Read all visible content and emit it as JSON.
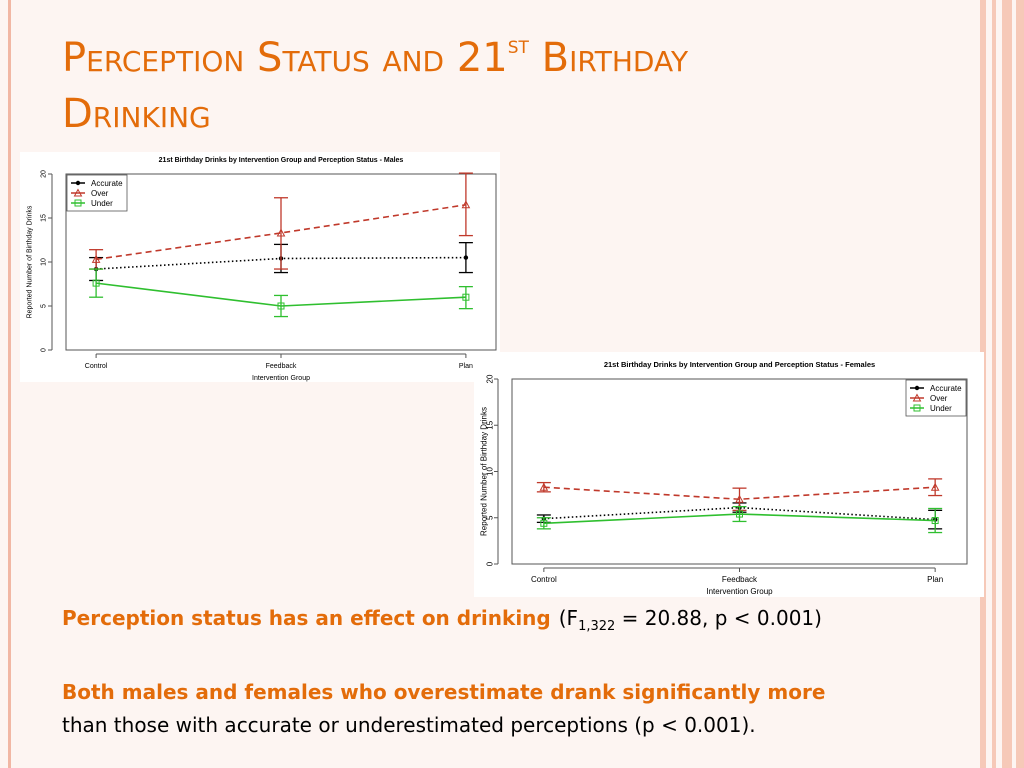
{
  "slide": {
    "title_main": "Perception Status and 21",
    "title_sup": "st",
    "title_tail": "Birthday",
    "title_line2": "Drinking",
    "text1_orange": "Perception status has an effect on drinking",
    "text1_stat_a": "(F",
    "text1_stat_sub": "1,322",
    "text1_stat_b": " = 20.88, p < 0.001)",
    "text2_orange": "Both males and females who overestimate drank significantly more",
    "text2_plain": "than those with accurate or underestimated perceptions (p < 0.001)."
  },
  "colors": {
    "accent": "#e36c0a",
    "accurate": "#000000",
    "over": "#c0392b",
    "under": "#2fbf2f"
  },
  "chart_data": [
    {
      "type": "line",
      "title": "21st Birthday Drinks by Intervention Group and Perception Status - Males",
      "xlabel": "Intervention Group",
      "ylabel": "Reported Number of Birthday Drinks",
      "categories": [
        "Control",
        "Feedback",
        "Plan"
      ],
      "ylim": [
        0,
        20
      ],
      "yticks": [
        0,
        5,
        10,
        15,
        20
      ],
      "legend_position": "top-left",
      "series": [
        {
          "name": "Accurate",
          "values": [
            9.2,
            10.4,
            10.5
          ],
          "lower": [
            7.9,
            8.8,
            8.8
          ],
          "upper": [
            10.5,
            12.0,
            12.2
          ],
          "color": "#000000",
          "dash": "dotted",
          "marker": "dot"
        },
        {
          "name": "Over",
          "values": [
            10.3,
            13.3,
            16.5
          ],
          "lower": [
            9.2,
            9.2,
            13.0
          ],
          "upper": [
            11.4,
            17.3,
            20.1
          ],
          "color": "#c0392b",
          "dash": "dashed",
          "marker": "triangle"
        },
        {
          "name": "Under",
          "values": [
            7.6,
            5.0,
            6.0
          ],
          "lower": [
            6.0,
            3.8,
            4.7
          ],
          "upper": [
            9.2,
            6.2,
            7.2
          ],
          "color": "#2fbf2f",
          "dash": "solid",
          "marker": "square"
        }
      ]
    },
    {
      "type": "line",
      "title": "21st Birthday Drinks by Intervention Group and Perception Status - Females",
      "xlabel": "Intervention Group",
      "ylabel": "Reported Number of Birthday Drinks",
      "categories": [
        "Control",
        "Feedback",
        "Plan"
      ],
      "ylim": [
        0,
        20
      ],
      "yticks": [
        0,
        5,
        10,
        15,
        20
      ],
      "legend_position": "top-right",
      "series": [
        {
          "name": "Accurate",
          "values": [
            4.9,
            6.1,
            4.8
          ],
          "lower": [
            4.5,
            5.6,
            3.8
          ],
          "upper": [
            5.3,
            6.6,
            5.8
          ],
          "color": "#000000",
          "dash": "dotted",
          "marker": "dot"
        },
        {
          "name": "Over",
          "values": [
            8.3,
            7.0,
            8.3
          ],
          "lower": [
            7.8,
            5.8,
            7.4
          ],
          "upper": [
            8.8,
            8.2,
            9.2
          ],
          "color": "#c0392b",
          "dash": "dashed",
          "marker": "triangle"
        },
        {
          "name": "Under",
          "values": [
            4.4,
            5.4,
            4.7
          ],
          "lower": [
            3.8,
            4.6,
            3.4
          ],
          "upper": [
            5.0,
            6.2,
            6.0
          ],
          "color": "#2fbf2f",
          "dash": "solid",
          "marker": "square"
        }
      ]
    }
  ]
}
